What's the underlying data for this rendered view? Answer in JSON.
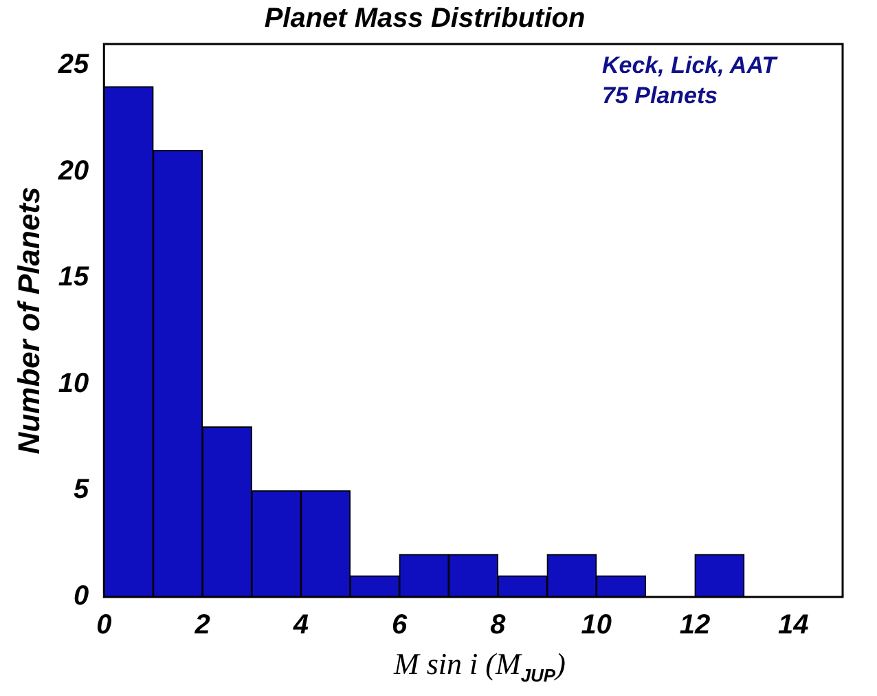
{
  "chart_data": {
    "type": "histogram",
    "title": "Planet Mass Distribution",
    "xlabel": "M sin i  (M$_{JUP}$)",
    "ylabel": "Number of Planets",
    "annotations": [
      "Keck, Lick, AAT",
      "75 Planets"
    ],
    "bins": [
      0,
      1,
      2,
      3,
      4,
      5,
      6,
      7,
      8,
      9,
      10,
      11,
      12,
      13
    ],
    "values": [
      24,
      21,
      8,
      5,
      5,
      1,
      2,
      2,
      1,
      2,
      1,
      0,
      2
    ],
    "color": "#0f0fc0",
    "xlim": [
      0,
      15
    ],
    "xticks": [
      0,
      2,
      4,
      6,
      8,
      10,
      12,
      14
    ],
    "ylim": [
      0,
      26
    ],
    "yticks": [
      0,
      5,
      10,
      15,
      20,
      25
    ],
    "grid": false,
    "legend": false
  }
}
